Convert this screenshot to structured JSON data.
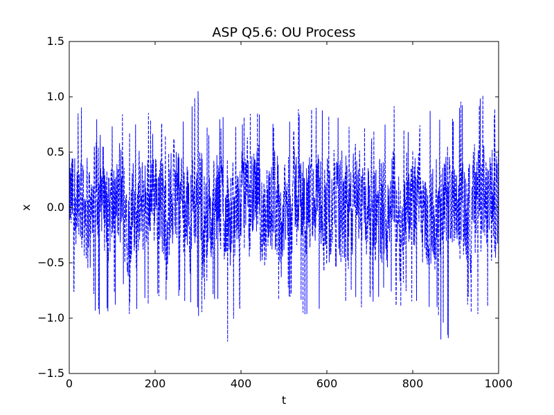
{
  "chart_data": {
    "type": "line",
    "title": "ASP Q5.6: OU Process",
    "xlabel": "t",
    "ylabel": "x",
    "xlim": [
      0,
      1000
    ],
    "ylim": [
      -1.5,
      1.5
    ],
    "xticks": [
      0,
      200,
      400,
      600,
      800,
      1000
    ],
    "xtick_labels": [
      "0",
      "200",
      "400",
      "600",
      "800",
      "1000"
    ],
    "yticks": [
      -1.5,
      -1.0,
      -0.5,
      0.0,
      0.5,
      1.0,
      1.5
    ],
    "ytick_labels": [
      "−1.5",
      "−1.0",
      "−0.5",
      "0.0",
      "0.5",
      "1.0",
      "1.5"
    ],
    "grid": false,
    "line_style": "dashed",
    "series": [
      {
        "color": "#0000ff",
        "x": [
          0,
          25,
          50,
          75,
          100,
          125,
          150,
          175,
          200,
          225,
          250,
          275,
          300,
          325,
          350,
          375,
          400,
          425,
          450,
          475,
          500,
          525,
          550,
          575,
          600,
          625,
          650,
          675,
          700,
          725,
          750,
          775,
          800,
          825,
          850,
          875,
          900,
          925,
          950,
          975,
          1000
        ],
        "values": [
          0.0,
          0.15,
          -0.1,
          0.2,
          -0.05,
          0.1,
          -0.15,
          0.05,
          0.2,
          -0.1,
          0.15,
          -0.05,
          0.1,
          -0.2,
          0.05,
          -0.1,
          0.0,
          0.1,
          -0.05,
          0.05,
          -0.1,
          0.15,
          0.0,
          0.1,
          -0.05,
          0.05,
          -0.1,
          0.1,
          0.0,
          -0.05,
          0.1,
          -0.1,
          0.05,
          0.0,
          -0.1,
          0.05,
          0.1,
          -0.05,
          0.15,
          0.0,
          0.05
        ],
        "upper_envelope": [
          0.9,
          1.0,
          0.85,
          0.8,
          0.75,
          0.85,
          0.8,
          0.9,
          0.85,
          0.8,
          1.06,
          0.85,
          1.07,
          0.8,
          0.85,
          0.95,
          0.85,
          0.9,
          0.85,
          0.8,
          0.9,
          0.85,
          1.05,
          1.07,
          0.85,
          0.9,
          0.85,
          0.8,
          0.85,
          0.8,
          1.03,
          0.85,
          0.8,
          0.85,
          0.9,
          0.95,
          0.9,
          1.07,
          1.15,
          1.05,
          0.85
        ],
        "lower_envelope": [
          -0.8,
          -1.0,
          -0.85,
          -1.2,
          -0.9,
          -0.85,
          -1.2,
          -0.9,
          -0.85,
          -0.9,
          -0.85,
          -0.9,
          -1.1,
          -0.85,
          -0.9,
          -1.32,
          -0.9,
          -0.95,
          -0.85,
          -1.07,
          -0.9,
          -0.85,
          -1.0,
          -1.05,
          -0.85,
          -0.9,
          -0.85,
          -0.9,
          -0.95,
          -0.85,
          -0.9,
          -1.0,
          -0.85,
          -0.9,
          -0.95,
          -1.35,
          -0.85,
          -0.9,
          -1.05,
          -0.9,
          -0.85
        ]
      }
    ]
  }
}
